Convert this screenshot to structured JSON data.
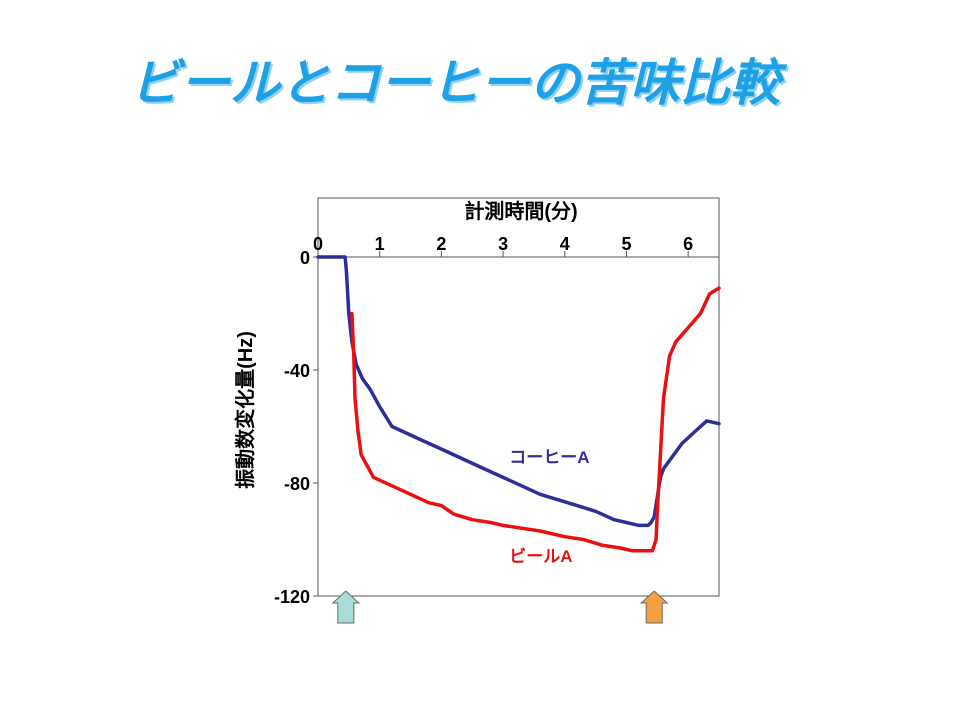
{
  "slide": {
    "title": "ビールとコーヒーの苦味比較"
  },
  "chart_data": {
    "type": "line",
    "xlabel": "計測時間(分)",
    "ylabel": "振動数変化量(Hz)",
    "xlim": [
      0,
      6.5
    ],
    "ylim": [
      -120,
      0
    ],
    "x_ticks": [
      0,
      1,
      2,
      3,
      4,
      5,
      6
    ],
    "y_ticks": [
      0,
      -40,
      -80,
      -120
    ],
    "grid": false,
    "colors": {
      "beer": "#e81010",
      "coffee": "#2e2e96",
      "start_arrow": "#a8dcd8",
      "end_arrow": "#f5a040"
    },
    "markers": [
      {
        "x": 0.45,
        "role": "start"
      },
      {
        "x": 5.45,
        "role": "end"
      }
    ],
    "series": [
      {
        "name": "コーヒーA",
        "color": "#2e2e96",
        "x": [
          0,
          0.44,
          0.46,
          0.5,
          0.55,
          0.62,
          0.72,
          0.85,
          1.0,
          1.2,
          1.5,
          1.8,
          2.0,
          2.3,
          2.6,
          3.0,
          3.3,
          3.6,
          3.9,
          4.2,
          4.5,
          4.8,
          5.0,
          5.2,
          5.35,
          5.4,
          5.45,
          5.5,
          5.55,
          5.6,
          5.7,
          5.9,
          6.1,
          6.3,
          6.5
        ],
        "y": [
          0,
          0,
          -5,
          -20,
          -30,
          -38,
          -43,
          -47,
          -53,
          -60,
          -63,
          -66,
          -68,
          -71,
          -74,
          -78,
          -81,
          -84,
          -86,
          -88,
          -90,
          -93,
          -94,
          -95,
          -95,
          -94,
          -92,
          -85,
          -78,
          -75,
          -72,
          -66,
          -62,
          -58,
          -59
        ]
      },
      {
        "name": "ビールA",
        "color": "#e81010",
        "x": [
          0.55,
          0.58,
          0.6,
          0.65,
          0.7,
          0.8,
          0.9,
          1.0,
          1.2,
          1.5,
          1.8,
          2.0,
          2.2,
          2.5,
          2.8,
          3.0,
          3.3,
          3.6,
          4.0,
          4.3,
          4.6,
          4.9,
          5.1,
          5.3,
          5.42,
          5.48,
          5.5,
          5.55,
          5.6,
          5.7,
          5.8,
          6.0,
          6.2,
          6.35,
          6.5
        ],
        "y": [
          -20,
          -35,
          -50,
          -62,
          -70,
          -74,
          -78,
          -79,
          -81,
          -84,
          -87,
          -88,
          -91,
          -93,
          -94,
          -95,
          -96,
          -97,
          -99,
          -100,
          -102,
          -103,
          -104,
          -104,
          -104,
          -100,
          -90,
          -70,
          -50,
          -35,
          -30,
          -25,
          -20,
          -13,
          -11
        ]
      }
    ],
    "annotations": [
      {
        "text": "コーヒーA",
        "series": "コーヒーA",
        "x": 3.1,
        "y": -73
      },
      {
        "text": "ビールA",
        "series": "ビールA",
        "x": 3.1,
        "y": -108
      }
    ]
  }
}
